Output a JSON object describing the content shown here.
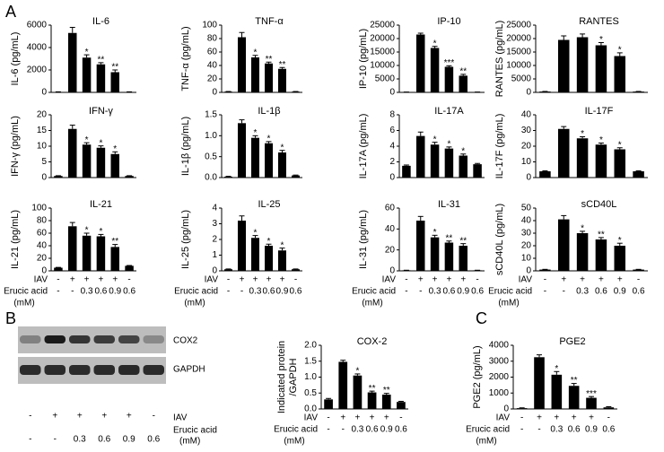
{
  "panel_labels": [
    "A",
    "B",
    "C"
  ],
  "blot": {
    "bands": [
      "COX2",
      "GAPDH"
    ],
    "conditions": {
      "rows": [
        {
          "label": "IAV",
          "values": [
            "-",
            "+",
            "+",
            "+",
            "+",
            "-"
          ]
        },
        {
          "label": "Erucic acid",
          "values": [
            "-",
            "-",
            "0.3",
            "0.6",
            "0.9",
            "0.6"
          ]
        }
      ],
      "unit": "(mM)"
    }
  },
  "chart_data": [
    {
      "type": "bar",
      "title": "IL-6",
      "ylabel": "IL-6 (pg/mL)",
      "color": "#000000",
      "values": [
        40,
        5300,
        3100,
        2500,
        1800,
        40
      ],
      "errors": [
        10,
        500,
        250,
        150,
        200,
        10
      ],
      "stars": [
        null,
        null,
        "*",
        "**",
        "**",
        null
      ],
      "ylim": [
        0,
        6000
      ],
      "yticks": [
        0,
        2000,
        4000,
        6000
      ]
    },
    {
      "type": "bar",
      "title": "TNF-α",
      "ylabel": "TNF-α (pg/mL)",
      "color": "#000000",
      "values": [
        1,
        82,
        52,
        43,
        35,
        1
      ],
      "errors": [
        0.3,
        7,
        3,
        2,
        2,
        0.3
      ],
      "stars": [
        null,
        null,
        "*",
        "**",
        "**",
        null
      ],
      "ylim": [
        0,
        100
      ],
      "yticks": [
        0,
        20,
        40,
        60,
        80,
        100
      ]
    },
    {
      "type": "bar",
      "title": "IP-10",
      "ylabel": "IP-10 (pg/mL)",
      "color": "#000000",
      "values": [
        100,
        21500,
        16500,
        9500,
        6200,
        100
      ],
      "errors": [
        30,
        500,
        600,
        400,
        500,
        30
      ],
      "stars": [
        null,
        null,
        "*",
        "***",
        "**",
        null
      ],
      "ylim": [
        0,
        25000
      ],
      "yticks": [
        0,
        5000,
        10000,
        15000,
        20000,
        25000
      ]
    },
    {
      "type": "bar",
      "title": "RANTES",
      "ylabel": "RANTES (pg/mL)",
      "color": "#000000",
      "values": [
        300,
        19500,
        20500,
        17500,
        13500,
        300
      ],
      "errors": [
        50,
        1500,
        1200,
        1000,
        1200,
        50
      ],
      "stars": [
        null,
        null,
        null,
        "*",
        "*",
        null
      ],
      "ylim": [
        0,
        25000
      ],
      "yticks": [
        0,
        5000,
        10000,
        15000,
        20000,
        25000
      ]
    },
    {
      "type": "bar",
      "title": "IFN-γ",
      "ylabel": "IFN-γ (pg/mL)",
      "color": "#000000",
      "values": [
        0.5,
        15.5,
        10.5,
        9.5,
        7.5,
        0.5
      ],
      "errors": [
        0.1,
        1.2,
        0.6,
        0.6,
        0.7,
        0.1
      ],
      "stars": [
        null,
        null,
        "*",
        "*",
        "*",
        null
      ],
      "ylim": [
        0,
        20
      ],
      "yticks": [
        0,
        5,
        10,
        15,
        20
      ]
    },
    {
      "type": "bar",
      "title": "IL-1β",
      "ylabel": "IL-1β (pg/mL)",
      "color": "#000000",
      "values": [
        0.02,
        1.3,
        0.95,
        0.82,
        0.6,
        0.05
      ],
      "errors": [
        0.01,
        0.08,
        0.05,
        0.04,
        0.05,
        0.01
      ],
      "stars": [
        null,
        null,
        "*",
        "*",
        "*",
        null
      ],
      "ylim": [
        0,
        1.5
      ],
      "yticks": [
        {
          "value": 0,
          "label": "0.0"
        },
        0.5,
        {
          "value": 1,
          "label": "1.0"
        },
        1.5
      ]
    },
    {
      "type": "bar",
      "title": "IL-17A",
      "ylabel": "IL-17A (pg/mL)",
      "color": "#000000",
      "values": [
        1.5,
        5.3,
        4.2,
        3.7,
        2.8,
        1.7
      ],
      "errors": [
        0.1,
        0.5,
        0.3,
        0.2,
        0.2,
        0.1
      ],
      "stars": [
        null,
        null,
        "*",
        "*",
        "*",
        null
      ],
      "ylim": [
        0,
        8
      ],
      "yticks": [
        0,
        2,
        4,
        6,
        8
      ]
    },
    {
      "type": "bar",
      "title": "IL-17F",
      "ylabel": "IL-17F (pg/mL)",
      "color": "#000000",
      "values": [
        4,
        31,
        25,
        21,
        18,
        4
      ],
      "errors": [
        0.3,
        1.5,
        1,
        1,
        1,
        0.3
      ],
      "stars": [
        null,
        null,
        "*",
        "*",
        "*",
        null
      ],
      "ylim": [
        0,
        40
      ],
      "yticks": [
        0,
        10,
        20,
        30,
        40
      ]
    },
    {
      "type": "bar",
      "title": "IL-21",
      "ylabel": "IL-21 (pg/mL)",
      "color": "#000000",
      "values": [
        5,
        71,
        56,
        55,
        38,
        8
      ],
      "errors": [
        0.5,
        6,
        4,
        3,
        4,
        0.5
      ],
      "stars": [
        null,
        null,
        "*",
        "*",
        "**",
        null
      ],
      "ylim": [
        0,
        100
      ],
      "yticks": [
        0,
        20,
        40,
        60,
        80,
        100
      ],
      "conditions": {
        "rows": [
          {
            "label": "IAV",
            "values": [
              "-",
              "+",
              "+",
              "+",
              "+",
              "-"
            ]
          },
          {
            "label": "Erucic acid",
            "values": [
              "-",
              "-",
              "0.3",
              "0.6",
              "0.9",
              "0.6"
            ]
          }
        ],
        "unit": "(mM)"
      }
    },
    {
      "type": "bar",
      "title": "IL-25",
      "ylabel": "IL-25 (pg/mL)",
      "color": "#000000",
      "values": [
        0.1,
        3.2,
        2.1,
        1.6,
        1.3,
        0.1
      ],
      "errors": [
        0.02,
        0.3,
        0.15,
        0.1,
        0.15,
        0.02
      ],
      "stars": [
        null,
        null,
        "*",
        "*",
        "*",
        null
      ],
      "ylim": [
        0,
        4
      ],
      "yticks": [
        0,
        1,
        2,
        3,
        4
      ],
      "conditions": {
        "rows": [
          {
            "label": "IAV",
            "values": [
              "-",
              "+",
              "+",
              "+",
              "+",
              "-"
            ]
          },
          {
            "label": "Erucic acid",
            "values": [
              "-",
              "-",
              "0.3",
              "0.6",
              "0.9",
              "0.6"
            ]
          }
        ],
        "unit": "(mM)"
      }
    },
    {
      "type": "bar",
      "title": "IL-31",
      "ylabel": "IL-31 (pg/mL)",
      "color": "#000000",
      "values": [
        0.5,
        48,
        32,
        27,
        24,
        0.5
      ],
      "errors": [
        0.1,
        4,
        2,
        1.5,
        2,
        0.1
      ],
      "stars": [
        null,
        null,
        "*",
        "**",
        "**",
        null
      ],
      "ylim": [
        0,
        60
      ],
      "yticks": [
        0,
        20,
        40,
        60
      ],
      "conditions": {
        "rows": [
          {
            "label": "IAV",
            "values": [
              "-",
              "+",
              "+",
              "+",
              "+",
              "-"
            ]
          },
          {
            "label": "Erucic acid",
            "values": [
              "-",
              "-",
              "0.3",
              "0.6",
              "0.9",
              "0.6"
            ]
          }
        ],
        "unit": "(mM)"
      }
    },
    {
      "type": "bar",
      "title": "sCD40L",
      "ylabel": "sCD40L (pg/mL)",
      "color": "#000000",
      "values": [
        1,
        41,
        30,
        25,
        20,
        1
      ],
      "errors": [
        0.2,
        3,
        1.5,
        1.5,
        2,
        0.2
      ],
      "stars": [
        null,
        null,
        "*",
        "**",
        "*",
        null
      ],
      "ylim": [
        0,
        50
      ],
      "yticks": [
        0,
        10,
        20,
        30,
        40,
        50
      ],
      "conditions": {
        "rows": [
          {
            "label": "IAV",
            "values": [
              "-",
              "+",
              "+",
              "+",
              "+",
              "-"
            ]
          },
          {
            "label": "Erucic acid",
            "values": [
              "-",
              "-",
              "0.3",
              "0.6",
              "0.9",
              "0.6"
            ]
          }
        ],
        "unit": "(mM)"
      }
    },
    {
      "type": "bar",
      "title": "COX-2",
      "ylabel": [
        "Indicated protein",
        "/GAPDH"
      ],
      "color": "#000000",
      "values": [
        0.3,
        1.48,
        1.05,
        0.52,
        0.45,
        0.22
      ],
      "errors": [
        0.03,
        0.05,
        0.05,
        0.04,
        0.04,
        0.02
      ],
      "stars": [
        null,
        null,
        "*",
        "**",
        "**",
        null
      ],
      "ylim": [
        0,
        2
      ],
      "yticks": [
        {
          "value": 0,
          "label": "0.0"
        },
        0.5,
        {
          "value": 1,
          "label": "1.0"
        },
        1.5,
        {
          "value": 2,
          "label": "2.0"
        }
      ],
      "conditions": {
        "rows": [
          {
            "label": "IAV",
            "values": [
              "-",
              "+",
              "+",
              "+",
              "+",
              "-"
            ]
          },
          {
            "label": "Erucic acid",
            "values": [
              "-",
              "-",
              "0.3",
              "0.6",
              "0.9",
              "0.6"
            ]
          }
        ],
        "unit": "(mM)"
      }
    },
    {
      "type": "bar",
      "title": "PGE2",
      "ylabel": "PGE2 (pg/mL)",
      "color": "#000000",
      "values": [
        50,
        3250,
        2150,
        1450,
        700,
        100
      ],
      "errors": [
        20,
        150,
        200,
        150,
        80,
        40
      ],
      "stars": [
        null,
        null,
        "*",
        "**",
        "***",
        null
      ],
      "ylim": [
        0,
        4000
      ],
      "yticks": [
        0,
        1000,
        2000,
        3000,
        4000
      ],
      "conditions": {
        "rows": [
          {
            "label": "IAV",
            "values": [
              "-",
              "+",
              "+",
              "+",
              "+",
              "-"
            ]
          },
          {
            "label": "Erucic acid",
            "values": [
              "-",
              "-",
              "0.3",
              "0.6",
              "0.9",
              "0.6"
            ]
          }
        ],
        "unit": "(mM)"
      }
    }
  ]
}
